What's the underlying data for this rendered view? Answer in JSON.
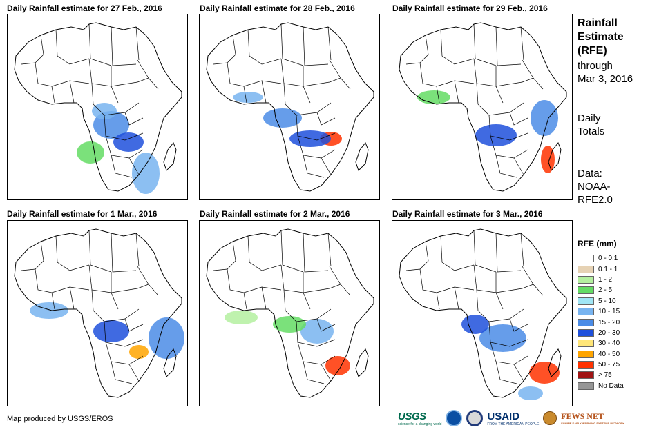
{
  "panels": [
    {
      "title": "Daily Rainfall estimate for 27 Feb., 2016"
    },
    {
      "title": "Daily Rainfall estimate for 28 Feb., 2016"
    },
    {
      "title": "Daily Rainfall estimate for 29 Feb., 2016"
    },
    {
      "title": "Daily Rainfall estimate for 1 Mar., 2016"
    },
    {
      "title": "Daily Rainfall estimate for 2 Mar., 2016"
    },
    {
      "title": "Daily Rainfall estimate for 3 Mar., 2016"
    }
  ],
  "side": {
    "title_lines": [
      "Rainfall",
      "Estimate",
      "(RFE)"
    ],
    "through_lines": [
      "through",
      "Mar 3, 2016"
    ],
    "totals_lines": [
      "Daily",
      "Totals"
    ],
    "data_lines": [
      "Data:",
      "NOAA-",
      "RFE2.0"
    ]
  },
  "legend": {
    "title": "RFE (mm)",
    "items": [
      {
        "label": "0 - 0.1",
        "color": "#ffffff"
      },
      {
        "label": "0.1 - 1",
        "color": "#e6d2b4"
      },
      {
        "label": "1 - 2",
        "color": "#b4f0a0"
      },
      {
        "label": "2 - 5",
        "color": "#64dc64"
      },
      {
        "label": "5 - 10",
        "color": "#a0e6f5"
      },
      {
        "label": "10 - 15",
        "color": "#78b4f0"
      },
      {
        "label": "15 - 20",
        "color": "#4b8ce6"
      },
      {
        "label": "20 - 30",
        "color": "#1e50dc"
      },
      {
        "label": "30 - 40",
        "color": "#ffe678"
      },
      {
        "label": "40 - 50",
        "color": "#ffa500"
      },
      {
        "label": "50 - 75",
        "color": "#ff3200"
      },
      {
        "label": "> 75",
        "color": "#a01414"
      },
      {
        "label": "No Data",
        "color": "#969696"
      }
    ]
  },
  "credit": "Map produced by USGS/EROS",
  "logos": {
    "usgs": "USGS",
    "usgs_tagline": "science for a changing world",
    "noaa_icon": "noaa-logo-icon",
    "seal_icon": "us-seal-icon",
    "usaid": "USAID",
    "usaid_tagline": "FROM THE AMERICAN PEOPLE",
    "fews": "FEWS NET",
    "fews_tagline": "FAMINE EARLY WARNING SYSTEMS NETWORK"
  }
}
